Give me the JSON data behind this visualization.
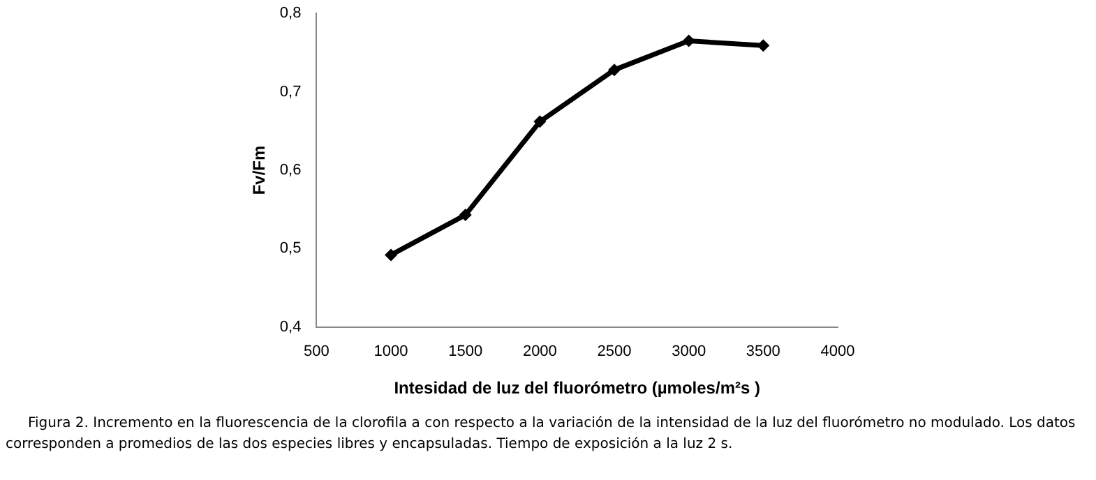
{
  "chart_data": {
    "type": "line",
    "xlabel": "Intesidad de luz del fluorómetro (µmoles/m²s )",
    "ylabel": "Fv/Fm",
    "x": [
      1000,
      1500,
      2000,
      2500,
      3000,
      3500
    ],
    "series": [
      {
        "color": "#000000",
        "values": [
          0.492,
          0.543,
          0.662,
          0.728,
          0.765,
          0.759
        ]
      }
    ],
    "xlim": [
      500,
      4000
    ],
    "xticks": [
      500,
      1000,
      1500,
      2000,
      2500,
      3000,
      3500,
      4000
    ],
    "ylim": [
      0.4,
      0.8
    ],
    "yticks": [
      {
        "value": 0.4,
        "label": "0,4"
      },
      {
        "value": 0.5,
        "label": "0,5"
      },
      {
        "value": 0.6,
        "label": "0,6"
      },
      {
        "value": 0.7,
        "label": "0,7"
      },
      {
        "value": 0.8,
        "label": "0,8"
      }
    ],
    "grid": false,
    "legend": false,
    "marker": "diamond",
    "line_style": "solid",
    "annotations": [
      "Figura 2. Incremento en la fluorescencia de la clorofila a con respecto a la variación de la intensidad de la luz del fluorómetro no modulado. Los datos corresponden a promedios de las dos especies libres y encapsuladas. Tiempo de exposición a la luz 2 s."
    ]
  }
}
